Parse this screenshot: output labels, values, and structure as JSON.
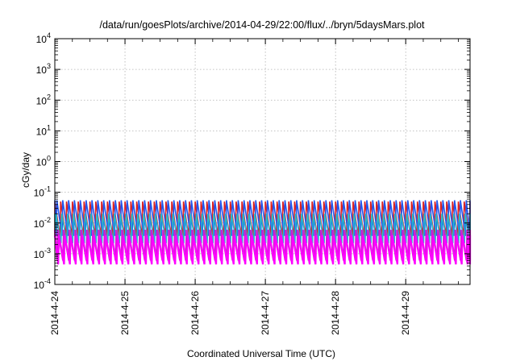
{
  "chart_data": {
    "type": "line",
    "title": "/data/run/goesPlots/archive/2014-04-29/22:00/flux/../bryn/5daysMars.plot",
    "xlabel": "Coordinated Universal Time (UTC)",
    "ylabel": "cGy/day",
    "y_scale": "log",
    "ylim": [
      0.0001,
      10000
    ],
    "y_ticks": [
      {
        "base": "10",
        "exp": "4",
        "value": 10000
      },
      {
        "base": "10",
        "exp": "3",
        "value": 1000
      },
      {
        "base": "10",
        "exp": "2",
        "value": 100
      },
      {
        "base": "10",
        "exp": "1",
        "value": 10
      },
      {
        "base": "10",
        "exp": "0",
        "value": 1
      },
      {
        "base": "10",
        "exp": "-1",
        "value": 0.1
      },
      {
        "base": "10",
        "exp": "-2",
        "value": 0.01
      },
      {
        "base": "10",
        "exp": "-3",
        "value": 0.001
      },
      {
        "base": "10",
        "exp": "-4",
        "value": 0.0001
      }
    ],
    "x_range": [
      "2014-4-24",
      "2014-4-29 22:00"
    ],
    "x_ticks": [
      "2014-4-24",
      "2014-4-25",
      "2014-4-26",
      "2014-4-27",
      "2014-4-28",
      "2014-4-29"
    ],
    "grid": true,
    "sawtooth_period_hours": 2,
    "series": [
      {
        "color": "#dd2222",
        "peak": 0.05,
        "trough": 0.0035
      },
      {
        "color": "#2255ee",
        "peak": 0.055,
        "trough": 0.0038
      },
      {
        "color": "#22bbcc",
        "peak": 0.02,
        "trough": 0.0022
      },
      {
        "color": "#cc22cc",
        "peak": 0.006,
        "trough": 0.0006
      },
      {
        "color": "#ff00ff",
        "peak": 0.004,
        "trough": 0.00045
      }
    ]
  }
}
